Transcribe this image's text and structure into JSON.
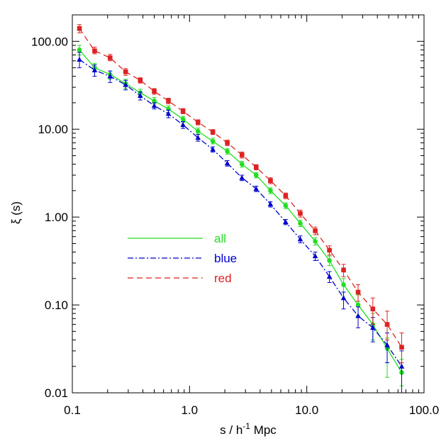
{
  "chart_data": {
    "type": "line",
    "xscale": "log",
    "yscale": "log",
    "xlim": [
      0.1,
      100.0
    ],
    "ylim": [
      0.01,
      200
    ],
    "xlabel": "s / h",
    "xlabel_sup": "-1",
    "xlabel_unit": " Mpc",
    "ylabel": "ξ (s)",
    "x_tick_labels": [
      {
        "value": 0.1,
        "label": "0.1"
      },
      {
        "value": 1.0,
        "label": "1.0"
      },
      {
        "value": 10.0,
        "label": "10.0"
      },
      {
        "value": 100.0,
        "label": "100.0"
      }
    ],
    "y_tick_labels": [
      {
        "value": 0.01,
        "label": "0.01"
      },
      {
        "value": 0.1,
        "label": "0.10"
      },
      {
        "value": 1.0,
        "label": "1.00"
      },
      {
        "value": 10.0,
        "label": "10.00"
      },
      {
        "value": 100.0,
        "label": "100.00"
      }
    ],
    "legend_position": "center-left",
    "grid": false,
    "series": [
      {
        "name": "all",
        "color": "#22dd22",
        "line_style": "solid",
        "marker": "circle",
        "x": [
          0.115,
          0.155,
          0.21,
          0.285,
          0.38,
          0.5,
          0.66,
          0.88,
          1.18,
          1.58,
          2.1,
          2.8,
          3.7,
          4.9,
          6.6,
          8.8,
          11.8,
          15.6,
          20.6,
          27.4,
          36.6,
          48.5,
          64.5
        ],
        "y": [
          80,
          50,
          42,
          33,
          26,
          21,
          17,
          13,
          9.5,
          7.3,
          5.6,
          4.0,
          3.0,
          2.0,
          1.35,
          0.85,
          0.53,
          0.32,
          0.17,
          0.1,
          0.06,
          0.032,
          0.017
        ],
        "err_low": [
          70,
          45,
          37,
          29,
          24,
          19.5,
          15.5,
          12,
          8.8,
          6.8,
          5.2,
          3.7,
          2.8,
          1.85,
          1.25,
          0.78,
          0.48,
          0.28,
          0.14,
          0.075,
          0.04,
          0.015,
          0.012
        ],
        "err_high": [
          90,
          56,
          46,
          37,
          28.5,
          23,
          18.5,
          14,
          10.3,
          7.9,
          6.0,
          4.3,
          3.2,
          2.15,
          1.45,
          0.92,
          0.58,
          0.36,
          0.2,
          0.13,
          0.08,
          0.042,
          0.024
        ]
      },
      {
        "name": "blue",
        "color": "#0000cc",
        "line_style": "dashdot",
        "marker": "triangle",
        "x": [
          0.115,
          0.155,
          0.21,
          0.285,
          0.38,
          0.5,
          0.66,
          0.88,
          1.18,
          1.58,
          2.1,
          2.8,
          3.7,
          4.9,
          6.6,
          8.8,
          11.8,
          15.6,
          20.6,
          27.4,
          36.6,
          48.5,
          64.5
        ],
        "y": [
          62,
          47,
          40,
          32,
          24,
          18.5,
          15,
          11.2,
          8.0,
          5.9,
          4.1,
          2.8,
          2.1,
          1.4,
          0.88,
          0.56,
          0.36,
          0.21,
          0.12,
          0.075,
          0.055,
          0.035,
          0.02
        ],
        "err_low": [
          50,
          40,
          34,
          28,
          21.5,
          17,
          13.5,
          10.2,
          7.3,
          5.5,
          3.8,
          2.6,
          1.95,
          1.3,
          0.82,
          0.51,
          0.32,
          0.18,
          0.09,
          0.055,
          0.038,
          0.022,
          0.01
        ],
        "err_high": [
          75,
          54,
          46,
          36,
          26.5,
          20,
          16.5,
          12.2,
          8.7,
          6.3,
          4.4,
          3.0,
          2.25,
          1.5,
          0.94,
          0.61,
          0.4,
          0.24,
          0.14,
          0.095,
          0.072,
          0.048,
          0.03
        ]
      },
      {
        "name": "red",
        "color": "#dd2222",
        "line_style": "dashed",
        "marker": "square",
        "x": [
          0.115,
          0.155,
          0.21,
          0.285,
          0.38,
          0.5,
          0.66,
          0.88,
          1.18,
          1.58,
          2.1,
          2.8,
          3.7,
          4.9,
          6.6,
          8.8,
          11.8,
          15.6,
          20.6,
          27.4,
          36.6,
          48.5,
          64.5
        ],
        "y": [
          140,
          78,
          65,
          45,
          36,
          27,
          21,
          16,
          12,
          9.3,
          7.0,
          5.1,
          3.7,
          2.6,
          1.75,
          1.1,
          0.7,
          0.42,
          0.25,
          0.14,
          0.09,
          0.06,
          0.033
        ],
        "err_low": [
          125,
          72,
          60,
          41,
          33.5,
          25,
          19.5,
          15,
          11.2,
          8.7,
          6.5,
          4.7,
          3.45,
          2.4,
          1.62,
          1.0,
          0.63,
          0.37,
          0.21,
          0.11,
          0.06,
          0.04,
          0.022
        ],
        "err_high": [
          155,
          86,
          71,
          49,
          38.5,
          29,
          22.5,
          17.2,
          12.8,
          9.9,
          7.5,
          5.5,
          3.95,
          2.8,
          1.88,
          1.2,
          0.77,
          0.47,
          0.29,
          0.17,
          0.12,
          0.085,
          0.048
        ]
      }
    ]
  }
}
